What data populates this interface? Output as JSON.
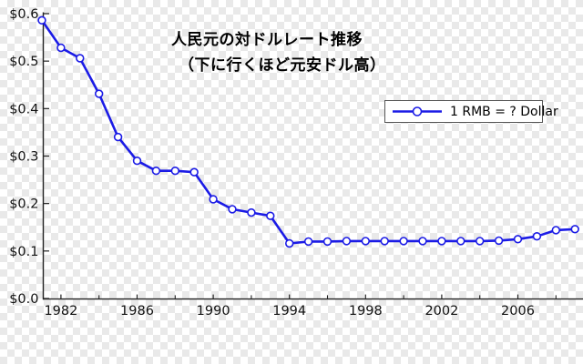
{
  "title": {
    "line1": "人民元の対ドルレート推移",
    "line2": "（下に行くほど元安ドル高）"
  },
  "legend": {
    "label": "1 RMB = ? Dollar"
  },
  "colors": {
    "line": "#1b1be6",
    "marker_fill": "#ffffff",
    "axis": "#222222",
    "tick_text": "#111111",
    "title_text": "#000000",
    "checker_light": "#ffffff",
    "checker_dark": "#e9e9e9",
    "legend_border": "#555555",
    "legend_bg": "#ffffff"
  },
  "chart_data": {
    "type": "line",
    "title": "人民元の対ドルレート推移",
    "subtitle": "（下に行くほど元安ドル高）",
    "xlabel": "",
    "ylabel": "",
    "grid": false,
    "legend_position": "inside-right-upper",
    "marker": "open-circle",
    "xlim": [
      1981,
      2009.5
    ],
    "ylim": [
      0.0,
      0.6
    ],
    "y_tick_labels": [
      "$0.0",
      "$0.1",
      "$0.2",
      "$0.3",
      "$0.4",
      "$0.5",
      "$0.6"
    ],
    "y_tick_values": [
      0.0,
      0.1,
      0.2,
      0.3,
      0.4,
      0.5,
      0.6
    ],
    "x_ticks_labeled": [
      1982,
      1986,
      1990,
      1994,
      1998,
      2002,
      2006
    ],
    "x_ticks_minor": [
      1984,
      1988,
      1992,
      1996,
      2000,
      2004,
      2008
    ],
    "series": [
      {
        "name": "1 RMB = ? Dollar",
        "x": [
          1981,
          1982,
          1983,
          1984,
          1985,
          1986,
          1987,
          1988,
          1989,
          1990,
          1991,
          1992,
          1993,
          1994,
          1995,
          1996,
          1997,
          1998,
          1999,
          2000,
          2001,
          2002,
          2003,
          2004,
          2005,
          2006,
          2007,
          2008,
          2009
        ],
        "values": [
          0.586,
          0.528,
          0.506,
          0.431,
          0.34,
          0.29,
          0.269,
          0.269,
          0.266,
          0.209,
          0.188,
          0.181,
          0.174,
          0.116,
          0.12,
          0.12,
          0.121,
          0.121,
          0.121,
          0.121,
          0.121,
          0.121,
          0.121,
          0.121,
          0.122,
          0.125,
          0.131,
          0.144,
          0.146
        ]
      }
    ]
  }
}
